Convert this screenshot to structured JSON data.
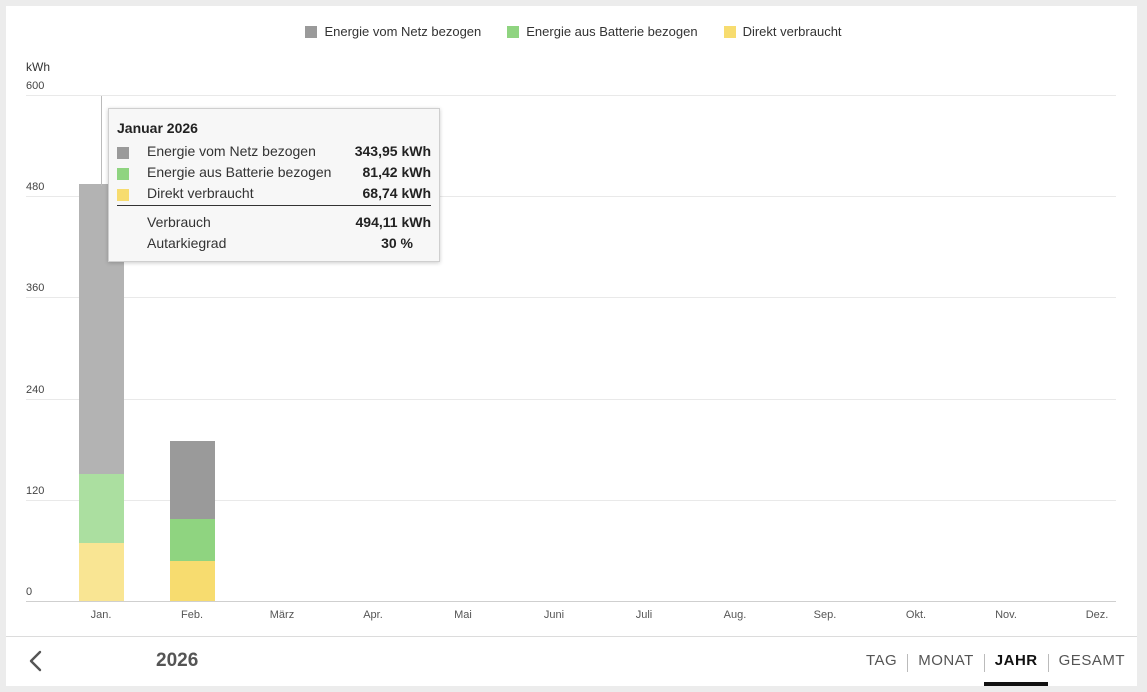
{
  "legend": [
    {
      "label": "Energie vom Netz bezogen",
      "color": "#9a9a9a"
    },
    {
      "label": "Energie aus Batterie bezogen",
      "color": "#8fd480"
    },
    {
      "label": "Direkt verbraucht",
      "color": "#f7dc6f"
    }
  ],
  "chart_data": {
    "type": "bar",
    "stacked": true,
    "ylabel": "kWh",
    "ylim": [
      0,
      600
    ],
    "yticks": [
      "0",
      "120",
      "240",
      "360",
      "480",
      "600"
    ],
    "categories": [
      "Jan.",
      "Feb.",
      "März",
      "Apr.",
      "Mai",
      "Juni",
      "Juli",
      "Aug.",
      "Sep.",
      "Okt.",
      "Nov.",
      "Dez."
    ],
    "series": [
      {
        "name": "Direkt verbraucht",
        "color": "#f7dc6f",
        "values": [
          68.74,
          47,
          0,
          0,
          0,
          0,
          0,
          0,
          0,
          0,
          0,
          0
        ]
      },
      {
        "name": "Energie aus Batterie bezogen",
        "color": "#8fd480",
        "values": [
          81.42,
          51,
          0,
          0,
          0,
          0,
          0,
          0,
          0,
          0,
          0,
          0
        ]
      },
      {
        "name": "Energie vom Netz bezogen",
        "color": "#9a9a9a",
        "values": [
          343.95,
          92,
          0,
          0,
          0,
          0,
          0,
          0,
          0,
          0,
          0,
          0
        ]
      }
    ],
    "highlighted_index": 0,
    "grid": true,
    "legend_position": "top-center"
  },
  "tooltip": {
    "title": "Januar 2026",
    "rows": [
      {
        "label": "Energie vom Netz bezogen",
        "value": "343,95 kWh",
        "color": "#9a9a9a"
      },
      {
        "label": "Energie aus Batterie bezogen",
        "value": "81,42 kWh",
        "color": "#8fd480"
      },
      {
        "label": "Direkt verbraucht",
        "value": "68,74 kWh",
        "color": "#f7dc6f"
      }
    ],
    "consumption_label": "Verbrauch",
    "consumption_value": "494,11 kWh",
    "autarky_label": "Autarkiegrad",
    "autarky_value": "30 %"
  },
  "footer": {
    "year": "2026",
    "tabs": [
      {
        "label": "TAG",
        "active": false
      },
      {
        "label": "MONAT",
        "active": false
      },
      {
        "label": "JAHR",
        "active": true
      },
      {
        "label": "GESAMT",
        "active": false
      }
    ]
  }
}
